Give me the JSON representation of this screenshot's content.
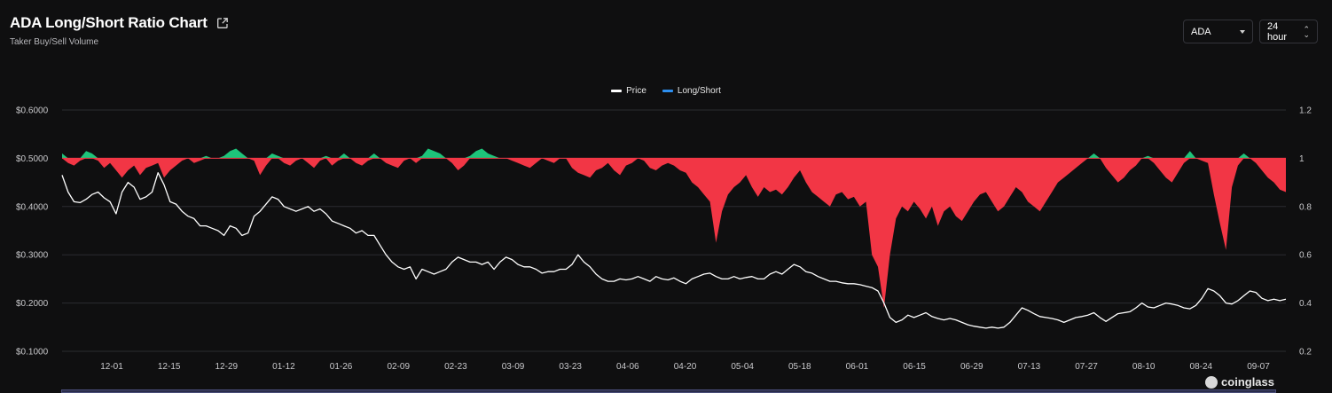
{
  "header": {
    "title": "ADA Long/Short Ratio Chart",
    "subtitle": "Taker Buy/Sell Volume"
  },
  "controls": {
    "asset": "ADA",
    "period": "24 hour"
  },
  "watermark": "coinglass",
  "colors": {
    "price": "#ffffff",
    "long_short": "#2d8ff0",
    "above": "#1dc47a",
    "below": "#f23645",
    "grid": "#2b2c31",
    "baseline": "#f23645"
  },
  "chart_data": {
    "type": "area",
    "legend": [
      "Price",
      "Long/Short"
    ],
    "x_ticks": [
      "12-01",
      "12-15",
      "12-29",
      "01-12",
      "01-26",
      "02-09",
      "02-23",
      "03-09",
      "03-23",
      "04-06",
      "04-20",
      "05-04",
      "05-18",
      "06-01",
      "06-15",
      "06-29",
      "07-13",
      "07-27",
      "08-10",
      "08-24",
      "09-07"
    ],
    "left_axis": {
      "ticks": [
        "$0.6000",
        "$0.5000",
        "$0.4000",
        "$0.3000",
        "$0.2000",
        "$0.1000"
      ],
      "range": [
        0.1,
        0.6
      ]
    },
    "right_axis": {
      "ticks": [
        "1.2",
        "1",
        "0.8",
        "0.6",
        "0.4",
        "0.2"
      ],
      "range": [
        0.2,
        1.2
      ],
      "baseline": 1.0
    },
    "series": [
      {
        "name": "Price",
        "values": [
          0.465,
          0.43,
          0.41,
          0.408,
          0.415,
          0.425,
          0.43,
          0.418,
          0.41,
          0.385,
          0.43,
          0.45,
          0.44,
          0.415,
          0.42,
          0.43,
          0.47,
          0.445,
          0.41,
          0.405,
          0.39,
          0.38,
          0.375,
          0.36,
          0.36,
          0.355,
          0.35,
          0.34,
          0.36,
          0.355,
          0.34,
          0.345,
          0.38,
          0.39,
          0.405,
          0.42,
          0.415,
          0.4,
          0.395,
          0.39,
          0.395,
          0.4,
          0.39,
          0.395,
          0.385,
          0.37,
          0.365,
          0.36,
          0.355,
          0.345,
          0.35,
          0.34,
          0.34,
          0.32,
          0.3,
          0.285,
          0.275,
          0.27,
          0.275,
          0.25,
          0.27,
          0.265,
          0.26,
          0.265,
          0.27,
          0.285,
          0.295,
          0.29,
          0.285,
          0.285,
          0.28,
          0.285,
          0.27,
          0.285,
          0.295,
          0.29,
          0.28,
          0.275,
          0.275,
          0.27,
          0.262,
          0.265,
          0.265,
          0.27,
          0.27,
          0.28,
          0.3,
          0.285,
          0.275,
          0.26,
          0.25,
          0.245,
          0.245,
          0.25,
          0.248,
          0.25,
          0.255,
          0.25,
          0.245,
          0.255,
          0.25,
          0.248,
          0.252,
          0.245,
          0.24,
          0.25,
          0.255,
          0.26,
          0.262,
          0.255,
          0.25,
          0.25,
          0.255,
          0.25,
          0.253,
          0.255,
          0.25,
          0.25,
          0.26,
          0.265,
          0.26,
          0.27,
          0.28,
          0.275,
          0.265,
          0.262,
          0.255,
          0.25,
          0.245,
          0.245,
          0.242,
          0.24,
          0.24,
          0.238,
          0.235,
          0.232,
          0.225,
          0.2,
          0.17,
          0.16,
          0.165,
          0.175,
          0.17,
          0.175,
          0.18,
          0.172,
          0.168,
          0.165,
          0.168,
          0.165,
          0.16,
          0.155,
          0.152,
          0.15,
          0.148,
          0.15,
          0.148,
          0.15,
          0.16,
          0.175,
          0.19,
          0.185,
          0.178,
          0.172,
          0.17,
          0.168,
          0.165,
          0.16,
          0.165,
          0.17,
          0.172,
          0.175,
          0.18,
          0.17,
          0.162,
          0.17,
          0.178,
          0.18,
          0.182,
          0.19,
          0.2,
          0.192,
          0.19,
          0.195,
          0.2,
          0.198,
          0.195,
          0.19,
          0.188,
          0.195,
          0.21,
          0.23,
          0.225,
          0.215,
          0.2,
          0.198,
          0.205,
          0.215,
          0.225,
          0.222,
          0.21,
          0.205,
          0.208,
          0.205,
          0.208
        ]
      },
      {
        "name": "Long/Short",
        "values": [
          1.02,
          0.98,
          0.97,
          0.99,
          1.03,
          1.02,
          0.99,
          0.96,
          0.98,
          0.95,
          0.92,
          0.95,
          0.97,
          0.93,
          0.96,
          0.97,
          0.98,
          0.92,
          0.95,
          0.97,
          0.99,
          1.0,
          0.98,
          0.99,
          1.01,
          1.0,
          1.0,
          1.01,
          1.03,
          1.04,
          1.02,
          1.0,
          0.99,
          0.93,
          0.97,
          1.02,
          1.01,
          0.98,
          0.97,
          0.99,
          1.0,
          0.98,
          0.96,
          0.99,
          1.01,
          0.97,
          0.99,
          1.02,
          1.0,
          0.98,
          0.97,
          0.99,
          1.02,
          1.0,
          0.98,
          0.97,
          0.96,
          0.99,
          1.0,
          0.98,
          1.01,
          1.04,
          1.03,
          1.02,
          1.0,
          0.98,
          0.95,
          0.97,
          1.01,
          1.03,
          1.04,
          1.02,
          1.01,
          1.0,
          1.0,
          0.99,
          0.98,
          0.97,
          0.96,
          0.98,
          1.0,
          0.99,
          0.98,
          1.0,
          1.0,
          0.96,
          0.94,
          0.93,
          0.92,
          0.95,
          0.96,
          0.98,
          0.95,
          0.93,
          0.97,
          0.98,
          1.0,
          0.99,
          0.96,
          0.95,
          0.97,
          0.98,
          0.97,
          0.95,
          0.94,
          0.9,
          0.88,
          0.85,
          0.82,
          0.65,
          0.78,
          0.85,
          0.88,
          0.9,
          0.93,
          0.88,
          0.84,
          0.88,
          0.86,
          0.87,
          0.85,
          0.88,
          0.92,
          0.95,
          0.9,
          0.86,
          0.84,
          0.82,
          0.8,
          0.85,
          0.86,
          0.83,
          0.84,
          0.8,
          0.82,
          0.6,
          0.55,
          0.38,
          0.6,
          0.75,
          0.8,
          0.78,
          0.82,
          0.79,
          0.75,
          0.8,
          0.72,
          0.78,
          0.8,
          0.76,
          0.74,
          0.78,
          0.82,
          0.85,
          0.86,
          0.82,
          0.78,
          0.8,
          0.84,
          0.88,
          0.86,
          0.82,
          0.8,
          0.78,
          0.82,
          0.86,
          0.9,
          0.92,
          0.94,
          0.96,
          0.98,
          1.0,
          1.02,
          1.0,
          0.96,
          0.93,
          0.9,
          0.92,
          0.95,
          0.97,
          1.0,
          1.01,
          0.98,
          0.95,
          0.92,
          0.9,
          0.94,
          0.98,
          1.03,
          1.0,
          0.99,
          0.98,
          0.85,
          0.73,
          0.62,
          0.88,
          0.97,
          1.02,
          1.0,
          0.98,
          0.95,
          0.92,
          0.9,
          0.87,
          0.86
        ]
      }
    ]
  }
}
